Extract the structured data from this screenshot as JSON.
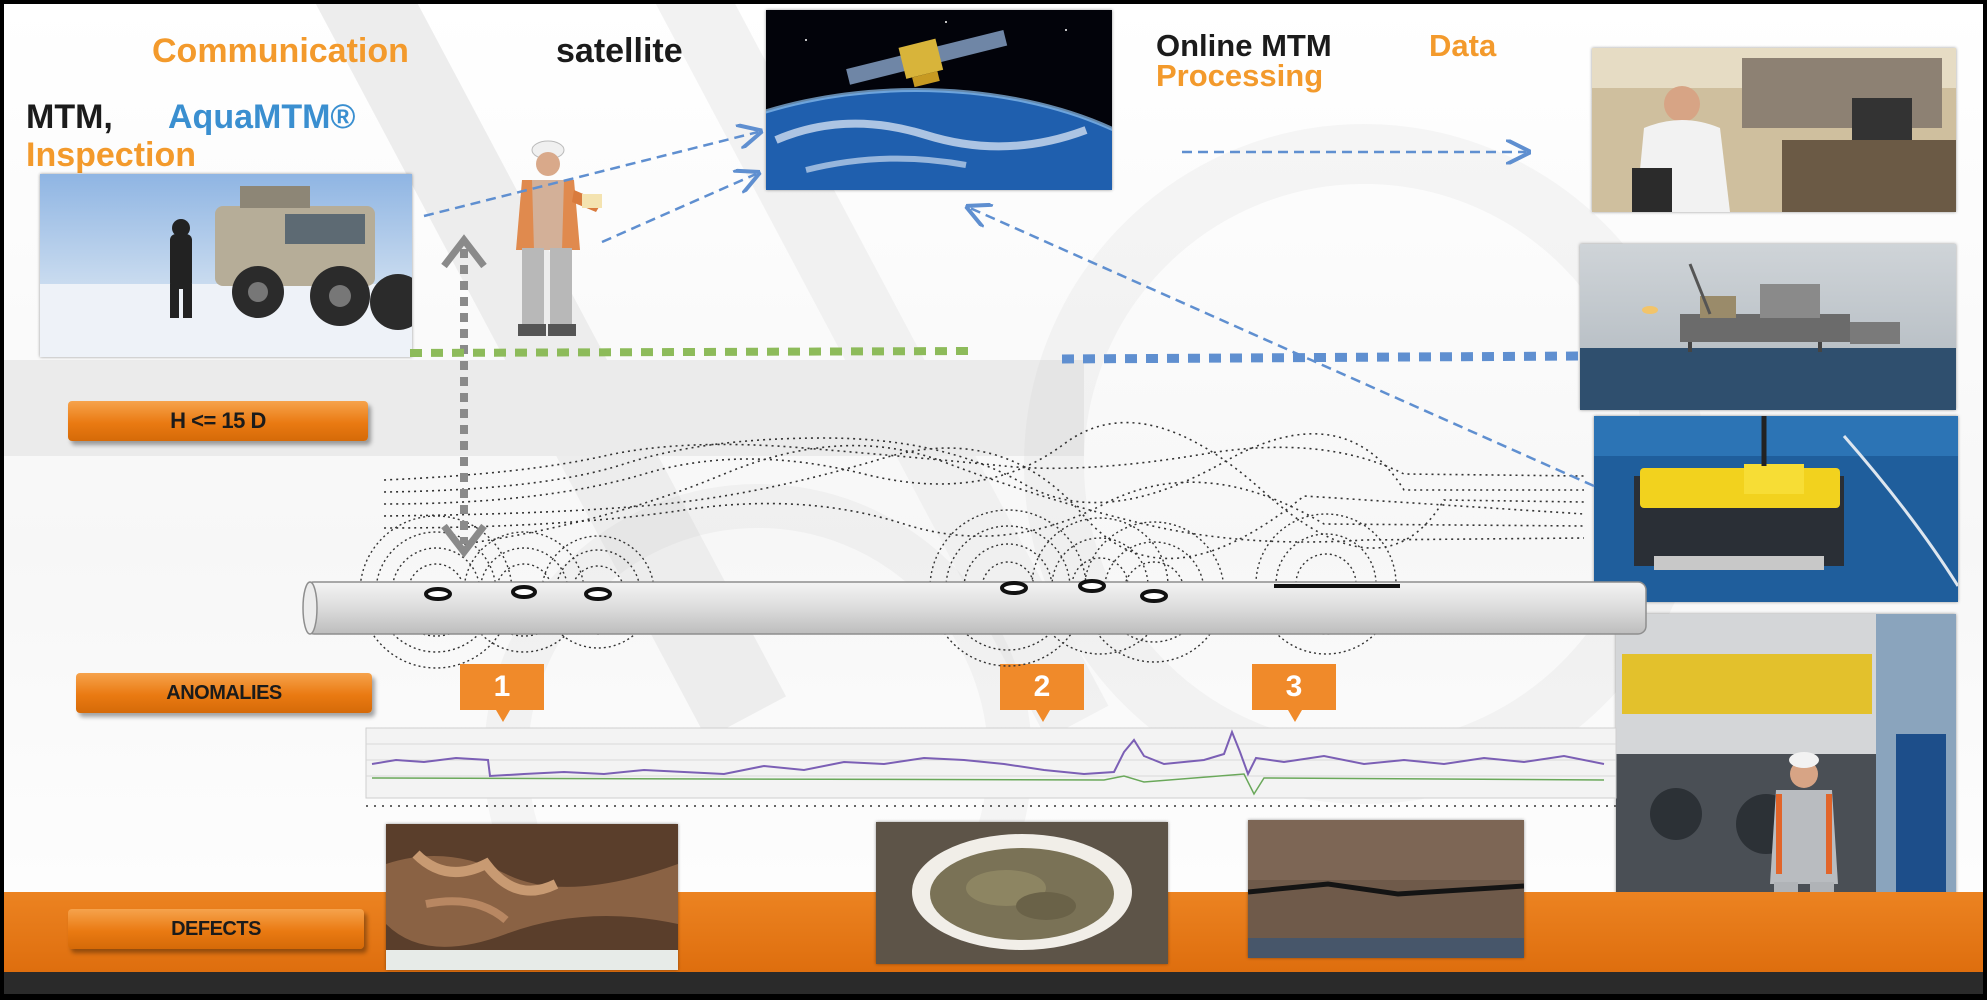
{
  "header": {
    "communication": "Communication",
    "satellite": "satellite",
    "online_mtm": "Online MTM",
    "data": "Data",
    "processing": "Processing",
    "mtm": "MTM,",
    "aquamtm": "AquaMTM®",
    "inspection": "Inspection"
  },
  "buttons": {
    "height_label": "H <= 15 D",
    "anomalies_label": "ANOMALIES",
    "defects_label": "DEFECTS"
  },
  "markers": [
    "1",
    "2",
    "3"
  ],
  "colors": {
    "orange": "#f39a2c",
    "blue": "#3a8fd0",
    "band_orange": "#e2741a",
    "dark_band": "#2a2a2a",
    "link_green": "#8dbb5a",
    "link_blue": "#5f8fd0"
  },
  "images": [
    "snow-vehicle-photo",
    "field-operator-figure",
    "satellite-earth-photo",
    "lab-engineer-photo",
    "offshore-platform-photo",
    "rov-underwater-photo",
    "rov-deck-engineer-photo",
    "corrosion-defect-photo",
    "coating-defect-photo",
    "crack-defect-photo"
  ]
}
